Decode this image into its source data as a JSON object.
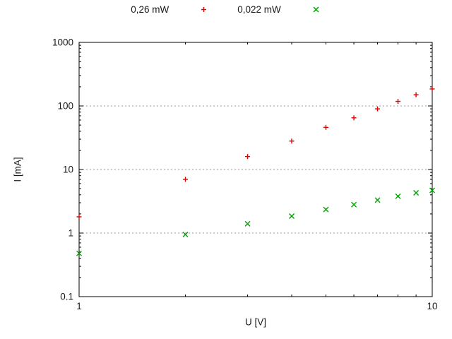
{
  "chart_data": {
    "type": "scatter",
    "title": "",
    "xlabel": "U [V]",
    "ylabel": "I [mA]",
    "x_scale": "log",
    "y_scale": "log",
    "xlim": [
      1,
      10
    ],
    "ylim": [
      0.1,
      1000
    ],
    "x_ticks": [
      1,
      10
    ],
    "x_tick_labels": [
      "1",
      "10"
    ],
    "y_ticks": [
      1000,
      100,
      10,
      1,
      0.1
    ],
    "y_tick_labels": [
      "1000",
      "100",
      "10",
      "1",
      "0.1"
    ],
    "grid_y": [
      100,
      10,
      1
    ],
    "grid_style": "dotted",
    "legend_position": "top-center",
    "x": [
      1,
      2,
      3,
      4,
      5,
      6,
      7,
      8,
      9,
      10
    ],
    "series": [
      {
        "name": "0,26 mW",
        "marker": "plus",
        "color": "#e00000",
        "values": [
          1.8,
          7,
          16,
          28,
          46,
          65,
          90,
          118,
          150,
          185
        ]
      },
      {
        "name": "0,022 mW",
        "marker": "cross",
        "color": "#00a000",
        "values": [
          0.48,
          0.95,
          1.4,
          1.85,
          2.35,
          2.8,
          3.3,
          3.8,
          4.3,
          4.7
        ]
      }
    ],
    "colors": {
      "frame": "#000000",
      "grid": "#9a9a9a",
      "text": "#1a1a1a",
      "background": "#ffffff"
    }
  }
}
